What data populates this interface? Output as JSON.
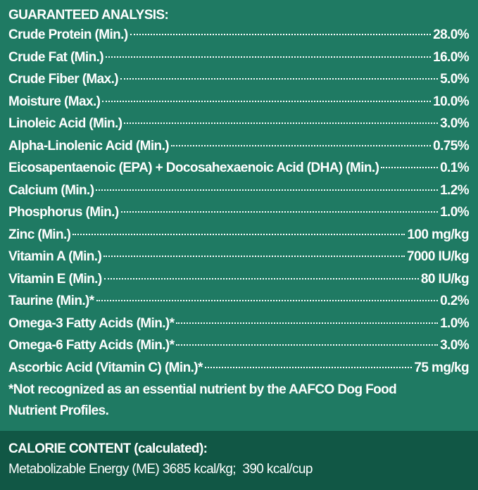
{
  "header": {
    "title": "GUARANTEED ANALYSIS:"
  },
  "rows": [
    [
      "Crude Protein (Min.)",
      "28.0%"
    ],
    [
      "Crude Fat (Min.)",
      "16.0%"
    ],
    [
      "Crude Fiber (Max.)",
      "5.0%"
    ],
    [
      "Moisture (Max.)",
      "10.0%"
    ],
    [
      "Linoleic Acid (Min.)",
      "3.0%"
    ],
    [
      "Alpha-Linolenic Acid (Min.)",
      "0.75%"
    ],
    [
      "Eicosapentaenoic (EPA) + Docosahexaenoic Acid (DHA) (Min.)",
      "0.1%"
    ],
    [
      "Calcium (Min.)",
      "1.2%"
    ],
    [
      "Phosphorus (Min.)",
      "1.0%"
    ],
    [
      "Zinc (Min.)",
      "100 mg/kg"
    ],
    [
      "Vitamin A (Min.)",
      "7000 IU/kg"
    ],
    [
      "Vitamin E (Min.)",
      "80 IU/kg"
    ],
    [
      "Taurine (Min.)*",
      "0.2%"
    ],
    [
      "Omega-3 Fatty Acids (Min.)*",
      "1.0%"
    ],
    [
      "Omega-6 Fatty Acids (Min.)*",
      "3.0%"
    ],
    [
      "Ascorbic Acid (Vitamin C) (Min.)*",
      "75 mg/kg"
    ]
  ],
  "footnote": [
    "*Not recognized as an essential nutrient by the AAFCO Dog Food",
    "Nutrient Profiles."
  ],
  "calorie": {
    "title": "CALORIE CONTENT (calculated):",
    "text": "Metabolizable Energy (ME) 3685 kcal/kg;  390 kcal/cup"
  }
}
